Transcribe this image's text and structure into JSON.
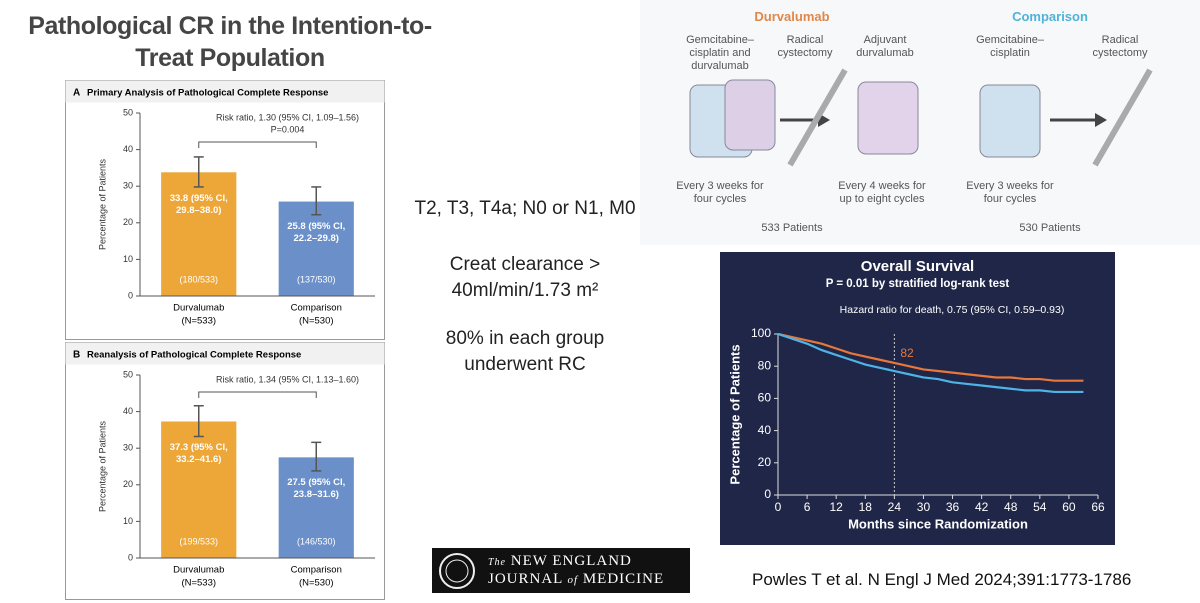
{
  "title": "Pathological CR in the Intention-to-Treat Population",
  "criteria": [
    "T2, T3, T4a; N0 or N1, M0",
    "Creat clearance > 40ml/min/1.73 m²",
    "80% in each group underwent RC"
  ],
  "journal": {
    "prefix": "The",
    "line1": "NEW ENGLAND",
    "line2a": "JOURNAL",
    "line2b": "of",
    "line2c": "MEDICINE"
  },
  "citation": "Powles T et al. N Engl J Med 2024;391:1773-1786",
  "diagram": {
    "arms": [
      {
        "name": "Durvalumab",
        "color": "#e0874a",
        "steps": [
          "Gemcitabine–cisplatin and durvalumab",
          "Radical cystectomy",
          "Adjuvant durvalumab"
        ],
        "schedules": [
          "Every 3 weeks for four cycles",
          "Every 4 weeks for up to eight cycles"
        ],
        "patients": "533 Patients"
      },
      {
        "name": "Comparison",
        "color": "#4fb3d9",
        "steps": [
          "Gemcitabine–cisplatin",
          "Radical cystectomy"
        ],
        "schedules": [
          "Every 3 weeks for four cycles"
        ],
        "patients": "530 Patients"
      }
    ]
  },
  "chart_data": [
    {
      "type": "bar",
      "panel": "A",
      "title": "Primary Analysis of Pathological Complete Response",
      "categories": [
        "Durvalumab",
        "Comparison"
      ],
      "n_labels": [
        "(N=533)",
        "(N=530)"
      ],
      "values": [
        33.8,
        25.8
      ],
      "ci_low": [
        29.8,
        22.2
      ],
      "ci_high": [
        38.0,
        29.8
      ],
      "value_labels": [
        "33.8 (95% CI, 29.8–38.0)",
        "25.8 (95% CI, 22.2–29.8)"
      ],
      "counts": [
        "(180/533)",
        "(137/530)"
      ],
      "colors": [
        "#eda638",
        "#6b8fc9"
      ],
      "annotations": [
        "Risk ratio, 1.30 (95% CI, 1.09–1.56)",
        "P=0.004"
      ],
      "ylabel": "Percentage of Patients",
      "ylim": [
        0,
        50
      ],
      "yticks": [
        0,
        10,
        20,
        30,
        40,
        50
      ]
    },
    {
      "type": "bar",
      "panel": "B",
      "title": "Reanalysis of Pathological Complete Response",
      "categories": [
        "Durvalumab",
        "Comparison"
      ],
      "n_labels": [
        "(N=533)",
        "(N=530)"
      ],
      "values": [
        37.3,
        27.5
      ],
      "ci_low": [
        33.2,
        23.8
      ],
      "ci_high": [
        41.6,
        31.6
      ],
      "value_labels": [
        "37.3 (95% CI, 33.2–41.6)",
        "27.5 (95% CI, 23.8–31.6)"
      ],
      "counts": [
        "(199/533)",
        "(146/530)"
      ],
      "colors": [
        "#eda638",
        "#6b8fc9"
      ],
      "annotations": [
        "Risk ratio, 1.34 (95% CI, 1.13–1.60)"
      ],
      "ylabel": "Percentage of Patients",
      "ylim": [
        0,
        50
      ],
      "yticks": [
        0,
        10,
        20,
        30,
        40,
        50
      ]
    },
    {
      "type": "line",
      "title": "Overall Survival",
      "subtitle": "P = 0.01 by stratified log-rank test",
      "annotation": "Hazard ratio for death, 0.75 (95% CI, 0.59–0.93)",
      "xlabel": "Months since Randomization",
      "ylabel": "Percentage of Patients",
      "x": [
        0,
        3,
        6,
        9,
        12,
        15,
        18,
        21,
        24,
        27,
        30,
        33,
        36,
        39,
        42,
        45,
        48,
        51,
        54,
        57,
        60,
        63
      ],
      "series": [
        {
          "color": "#e8773a",
          "values": [
            100,
            98,
            96,
            94,
            91,
            88,
            86,
            84,
            82,
            80,
            78,
            77,
            76,
            75,
            74,
            73,
            73,
            72,
            72,
            71,
            71,
            71
          ]
        },
        {
          "color": "#4fb3e6",
          "values": [
            100,
            97,
            94,
            90,
            87,
            84,
            81,
            79,
            77,
            75,
            73,
            72,
            70,
            69,
            68,
            67,
            66,
            65,
            65,
            64,
            64,
            64
          ]
        }
      ],
      "marker": {
        "x": 24,
        "y": 82
      },
      "xlim": [
        0,
        66
      ],
      "xticks": [
        0,
        6,
        12,
        18,
        24,
        30,
        36,
        42,
        48,
        54,
        60,
        66
      ],
      "ylim": [
        0,
        100
      ],
      "yticks": [
        0,
        20,
        40,
        60,
        80,
        100
      ]
    }
  ]
}
